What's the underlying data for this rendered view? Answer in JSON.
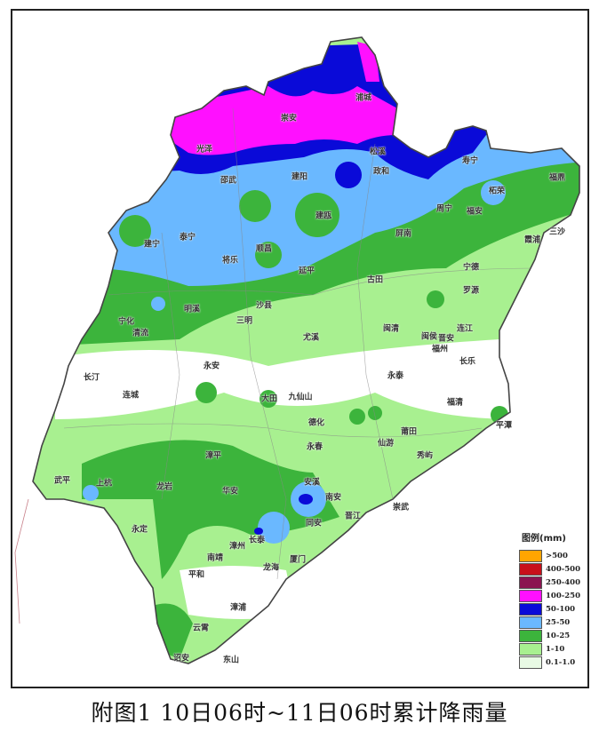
{
  "caption": "附图1  10日06时~11日06时累计降雨量",
  "legend": {
    "title": "图例(mm)",
    "items": [
      {
        "label": ">500",
        "color": "#ffa500"
      },
      {
        "label": "400-500",
        "color": "#c8101a"
      },
      {
        "label": "250-400",
        "color": "#8b1450"
      },
      {
        "label": "100-250",
        "color": "#ff10ff"
      },
      {
        "label": "50-100",
        "color": "#0a0ad8"
      },
      {
        "label": "25-50",
        "color": "#6ab8ff"
      },
      {
        "label": "10-25",
        "color": "#3cb43c"
      },
      {
        "label": "1-10",
        "color": "#a8f090"
      },
      {
        "label": "0.1-1.0",
        "color": "#e8fae4"
      }
    ]
  },
  "map": {
    "labels": [
      "浦城",
      "崇安",
      "光泽",
      "松溪",
      "政和",
      "邵武",
      "建阳",
      "寿宁",
      "福鼎",
      "柘荣",
      "周宁",
      "福安",
      "霞浦",
      "三沙",
      "建宁",
      "泰宁",
      "将乐",
      "顺昌",
      "建瓯",
      "屏南",
      "延平",
      "古田",
      "宁德",
      "罗源",
      "沙县",
      "明溪",
      "三明",
      "宁化",
      "清流",
      "尤溪",
      "闽清",
      "闽侯",
      "晋安",
      "福州",
      "连江",
      "长乐",
      "永安",
      "长汀",
      "连城",
      "永泰",
      "大田",
      "九仙山",
      "福清",
      "平潭",
      "德化",
      "莆田",
      "仙游",
      "秀屿",
      "永春",
      "漳平",
      "武平",
      "上杭",
      "龙岩",
      "华安",
      "永定",
      "安溪",
      "南安",
      "崇武",
      "晋江",
      "同安",
      "长泰",
      "漳州",
      "南靖",
      "厦门",
      "龙海",
      "平和",
      "漳浦",
      "云霄",
      "诏安",
      "东山"
    ]
  }
}
